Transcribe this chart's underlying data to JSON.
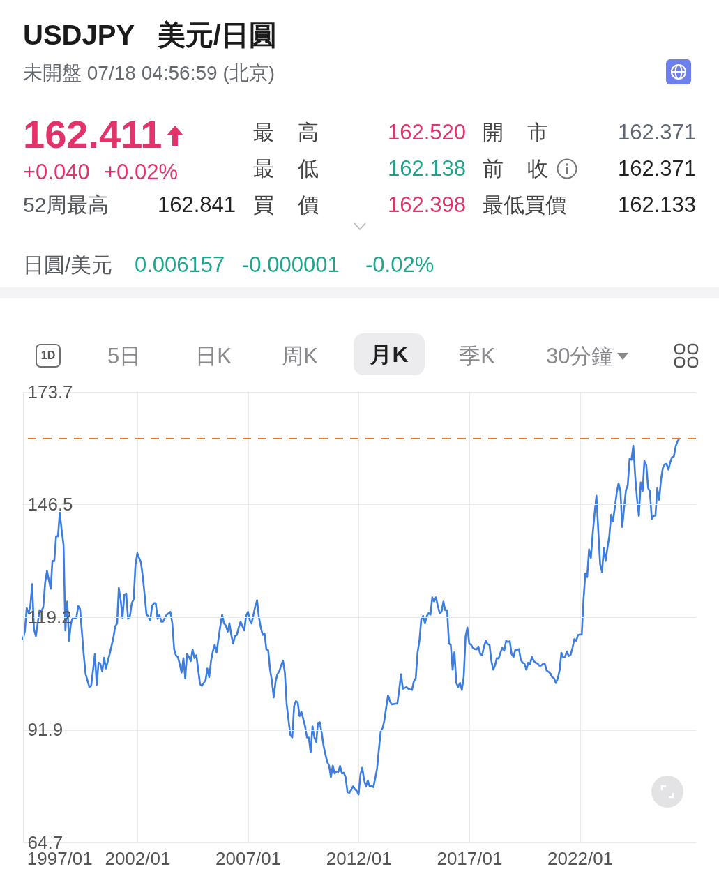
{
  "chart_data": [
    {
      "type": "other",
      "title": "USDJPY   美元/日圓",
      "subtitle": "未開盤 07/18 04:56:59 (北京)",
      "annotations": [
        "162.411",
        "+0.040",
        "+0.02%",
        "52周最高",
        "162.841",
        "最 高",
        "162.520",
        "開 市",
        "162.371",
        "最 低",
        "162.138",
        "前 收",
        "162.371",
        "買 價",
        "162.398",
        "最低買價",
        "162.133",
        "日圓/美元",
        "0.006157",
        "-0.000001",
        "-0.02%"
      ]
    },
    {
      "type": "other",
      "annotations": [
        "1D",
        "5日",
        "日K",
        "周K",
        "月K",
        "季K",
        "30分鐘"
      ]
    },
    {
      "type": "line",
      "color": "#3b7de0",
      "grid": true,
      "xlim": [
        "1996-11",
        "2027-04"
      ],
      "xticks": [
        {
          "value": "1997-01",
          "label": "1997/01"
        },
        {
          "value": "2002-01",
          "label": "2002/01"
        },
        {
          "value": "2007-01",
          "label": "2007/01"
        },
        {
          "value": "2012-01",
          "label": "2012/01"
        },
        {
          "value": "2017-01",
          "label": "2017/01"
        },
        {
          "value": "2022-01",
          "label": "2022/01"
        }
      ],
      "ylim": [
        64.7,
        173.7
      ],
      "yticks": [
        64.7,
        91.9,
        119.2,
        146.5,
        173.7
      ],
      "ref_lines": [
        {
          "axis": "y",
          "value": 162.4,
          "color": "#e8782c",
          "line_style": "dashed"
        }
      ],
      "x": [
        "1996-11",
        "1996-12",
        "1997-01",
        "1997-02",
        "1997-03",
        "1997-04",
        "1997-05",
        "1997-06",
        "1997-08",
        "1997-09",
        "1997-10",
        "1997-11",
        "1997-12",
        "1998-02",
        "1998-03",
        "1998-04",
        "1998-05",
        "1998-06",
        "1998-07",
        "1998-08",
        "1998-09",
        "1998-10",
        "1998-11",
        "1998-12",
        "1999-01",
        "1999-02",
        "1999-04",
        "1999-05",
        "1999-06",
        "1999-07",
        "1999-08",
        "1999-09",
        "1999-11",
        "1999-12",
        "2000-02",
        "2000-03",
        "2000-04",
        "2000-05",
        "2000-06",
        "2000-07",
        "2000-08",
        "2000-09",
        "2000-10",
        "2000-12",
        "2001-01",
        "2001-02",
        "2001-03",
        "2001-04",
        "2001-05",
        "2001-06",
        "2001-07",
        "2001-08",
        "2001-09",
        "2001-10",
        "2001-11",
        "2001-12",
        "2002-01",
        "2002-02",
        "2002-03",
        "2002-04",
        "2002-05",
        "2002-06",
        "2002-07",
        "2002-08",
        "2002-09",
        "2002-10",
        "2002-11",
        "2002-12",
        "2003-01",
        "2003-02",
        "2003-03",
        "2003-04",
        "2003-05",
        "2003-07",
        "2003-08",
        "2003-09",
        "2003-10",
        "2003-11",
        "2003-12",
        "2004-01",
        "2004-02",
        "2004-03",
        "2004-04",
        "2004-05",
        "2004-06",
        "2004-07",
        "2004-08",
        "2004-09",
        "2004-11",
        "2004-12",
        "2005-02",
        "2005-03",
        "2005-04",
        "2005-05",
        "2005-06",
        "2005-07",
        "2005-08",
        "2005-09",
        "2005-10",
        "2005-11",
        "2005-12",
        "2006-01",
        "2006-02",
        "2006-03",
        "2006-04",
        "2006-05",
        "2006-06",
        "2006-07",
        "2006-08",
        "2006-09",
        "2006-10",
        "2006-11",
        "2006-12",
        "2007-01",
        "2007-02",
        "2007-03",
        "2007-04",
        "2007-05",
        "2007-06",
        "2007-07",
        "2007-08",
        "2007-09",
        "2007-10",
        "2007-11",
        "2007-12",
        "2008-01",
        "2008-02",
        "2008-03",
        "2008-04",
        "2008-05",
        "2008-06",
        "2008-07",
        "2008-08",
        "2008-09",
        "2008-10",
        "2008-11",
        "2008-12",
        "2009-01",
        "2009-02",
        "2009-03",
        "2009-04",
        "2009-05",
        "2009-06",
        "2009-07",
        "2009-08",
        "2009-09",
        "2009-10",
        "2009-11",
        "2009-12",
        "2010-01",
        "2010-02",
        "2010-03",
        "2010-04",
        "2010-05",
        "2010-06",
        "2010-07",
        "2010-08",
        "2010-09",
        "2010-10",
        "2010-11",
        "2010-12",
        "2011-01",
        "2011-02",
        "2011-03",
        "2011-04",
        "2011-05",
        "2011-06",
        "2011-07",
        "2011-08",
        "2011-09",
        "2011-10",
        "2011-11",
        "2011-12",
        "2012-01",
        "2012-02",
        "2012-03",
        "2012-04",
        "2012-05",
        "2012-06",
        "2012-07",
        "2012-08",
        "2012-09",
        "2012-10",
        "2012-11",
        "2012-12",
        "2013-01",
        "2013-02",
        "2013-03",
        "2013-04",
        "2013-05",
        "2013-06",
        "2013-07",
        "2013-08",
        "2013-09",
        "2013-10",
        "2013-11",
        "2013-12",
        "2014-01",
        "2014-02",
        "2014-03",
        "2014-04",
        "2014-05",
        "2014-06",
        "2014-07",
        "2014-08",
        "2014-09",
        "2014-10",
        "2014-11",
        "2014-12",
        "2015-01",
        "2015-02",
        "2015-03",
        "2015-04",
        "2015-05",
        "2015-06",
        "2015-07",
        "2015-08",
        "2015-09",
        "2015-10",
        "2015-11",
        "2015-12",
        "2016-01",
        "2016-02",
        "2016-03",
        "2016-04",
        "2016-05",
        "2016-06",
        "2016-07",
        "2016-08",
        "2016-09",
        "2016-10",
        "2016-11",
        "2016-12",
        "2017-01",
        "2017-02",
        "2017-03",
        "2017-04",
        "2017-05",
        "2017-06",
        "2017-07",
        "2017-08",
        "2017-09",
        "2017-10",
        "2017-11",
        "2017-12",
        "2018-01",
        "2018-02",
        "2018-03",
        "2018-04",
        "2018-05",
        "2018-06",
        "2018-07",
        "2018-08",
        "2018-09",
        "2018-10",
        "2018-11",
        "2018-12",
        "2019-01",
        "2019-02",
        "2019-03",
        "2019-04",
        "2019-05",
        "2019-06",
        "2019-07",
        "2019-08",
        "2019-09",
        "2019-10",
        "2019-11",
        "2019-12",
        "2020-01",
        "2020-02",
        "2020-03",
        "2020-04",
        "2020-05",
        "2020-06",
        "2020-07",
        "2020-08",
        "2020-09",
        "2020-10",
        "2020-11",
        "2020-12",
        "2021-01",
        "2021-02",
        "2021-03",
        "2021-04",
        "2021-05",
        "2021-06",
        "2021-07",
        "2021-08",
        "2021-09",
        "2021-10",
        "2021-11",
        "2021-12",
        "2022-01",
        "2022-02",
        "2022-03",
        "2022-04",
        "2022-05",
        "2022-06",
        "2022-07",
        "2022-08",
        "2022-09",
        "2022-10",
        "2022-11",
        "2022-12",
        "2023-01",
        "2023-02",
        "2023-03",
        "2023-04",
        "2023-05",
        "2023-06",
        "2023-07",
        "2023-08",
        "2023-09",
        "2023-10",
        "2023-11",
        "2023-12",
        "2024-01",
        "2024-02",
        "2024-03",
        "2024-04",
        "2024-05",
        "2024-06",
        "2024-07",
        "2024-08",
        "2024-09",
        "2024-10",
        "2024-11",
        "2024-12",
        "2025-01",
        "2025-02",
        "2025-03",
        "2025-04",
        "2025-05",
        "2025-06",
        "2025-07",
        "2025-08",
        "2025-09",
        "2025-10",
        "2025-11",
        "2025-12",
        "2026-01",
        "2026-02",
        "2026-03",
        "2026-04",
        "2026-05",
        "2026-06",
        "2026-07"
      ],
      "values": [
        113.9,
        115.8,
        121.4,
        120.2,
        121.9,
        127.2,
        116.3,
        114.6,
        120.9,
        120.7,
        121.6,
        127.5,
        130.4,
        126.1,
        132.8,
        132.8,
        138.8,
        138.8,
        144.5,
        140.2,
        136.7,
        116.0,
        123.0,
        113.5,
        117.7,
        119.1,
        119.1,
        121.9,
        121.2,
        115.6,
        110.0,
        105.4,
        102.3,
        102.6,
        110.3,
        102.8,
        108.2,
        107.9,
        106.1,
        109.4,
        106.8,
        108.6,
        110.3,
        114.2,
        117.0,
        117.7,
        126.3,
        123.3,
        119.1,
        124.7,
        124.9,
        118.8,
        119.5,
        122.6,
        123.5,
        131.8,
        134.7,
        133.5,
        132.5,
        129.0,
        124.7,
        119.8,
        119.5,
        118.4,
        121.9,
        122.6,
        122.6,
        118.8,
        119.8,
        118.1,
        118.1,
        119.1,
        119.8,
        120.5,
        117.7,
        111.4,
        109.9,
        109.6,
        107.9,
        105.8,
        109.3,
        104.4,
        110.3,
        109.6,
        108.6,
        111.4,
        109.3,
        110.0,
        103.0,
        102.6,
        104.0,
        106.8,
        104.7,
        108.6,
        111.0,
        112.5,
        110.7,
        113.9,
        117.0,
        119.8,
        117.7,
        117.2,
        115.7,
        117.7,
        114.9,
        112.8,
        114.7,
        114.9,
        116.7,
        118.1,
        117.0,
        116.0,
        119.5,
        120.5,
        118.4,
        117.7,
        119.8,
        121.8,
        123.3,
        119.1,
        116.7,
        114.9,
        115.3,
        111.4,
        111.2,
        106.5,
        103.7,
        99.8,
        103.7,
        105.4,
        106.1,
        107.5,
        108.7,
        105.8,
        98.1,
        94.2,
        90.7,
        90.1,
        97.7,
        98.9,
        98.6,
        95.3,
        96.3,
        94.6,
        92.8,
        90.1,
        90.1,
        86.5,
        92.8,
        90.1,
        89.0,
        93.6,
        93.8,
        91.3,
        88.2,
        86.1,
        84.2,
        83.3,
        80.5,
        83.3,
        81.4,
        81.9,
        81.8,
        83.2,
        81.4,
        81.6,
        80.5,
        76.9,
        76.7,
        77.4,
        78.3,
        77.6,
        77.2,
        76.3,
        81.2,
        82.8,
        79.8,
        78.3,
        79.7,
        78.3,
        78.4,
        78.1,
        80.2,
        82.6,
        87.2,
        91.7,
        92.4,
        94.2,
        97.4,
        100.3,
        98.9,
        98.1,
        98.2,
        98.3,
        98.3,
        101.6,
        105.4,
        101.9,
        102.1,
        102.3,
        101.9,
        101.7,
        101.6,
        103.7,
        104.4,
        110.7,
        113.5,
        118.8,
        119.5,
        117.7,
        119.5,
        120.2,
        119.8,
        124.0,
        123.0,
        124.0,
        121.9,
        120.2,
        120.5,
        123.0,
        120.9,
        120.9,
        112.8,
        112.5,
        106.5,
        110.7,
        103.3,
        102.3,
        103.3,
        101.6,
        104.7,
        114.6,
        116.7,
        112.8,
        112.5,
        111.8,
        111.5,
        111.4,
        112.1,
        110.3,
        110.0,
        112.1,
        113.5,
        112.7,
        112.5,
        108.6,
        106.5,
        107.5,
        109.3,
        109.2,
        110.7,
        111.8,
        111.1,
        113.5,
        113.2,
        113.4,
        110.3,
        109.6,
        111.4,
        111.3,
        111.5,
        108.9,
        108.2,
        108.0,
        106.5,
        108.2,
        107.9,
        109.6,
        108.6,
        108.2,
        108.0,
        107.5,
        107.5,
        107.9,
        107.9,
        106.3,
        106.0,
        105.6,
        104.7,
        104.4,
        103.3,
        104.4,
        106.5,
        110.6,
        109.4,
        109.6,
        110.9,
        109.8,
        110.1,
        111.8,
        113.9,
        113.5,
        114.9,
        115.0,
        115.0,
        123.3,
        129.8,
        128.9,
        135.6,
        133.5,
        139.5,
        144.4,
        148.6,
        140.0,
        132.0,
        130.2,
        136.0,
        132.8,
        136.0,
        138.8,
        144.0,
        142.4,
        145.8,
        149.3,
        151.6,
        149.7,
        141.0,
        145.8,
        150.0,
        151.1,
        157.6,
        157.3,
        160.7,
        153.5,
        147.9,
        143.7,
        151.8,
        149.7,
        157.0,
        156.0,
        150.4,
        149.7,
        143.0,
        143.7,
        143.8,
        150.4,
        147.6,
        152.5,
        155.3,
        156.2,
        156.3,
        154.9,
        156.7,
        157.9,
        158.1,
        160.5,
        161.8,
        162.4
      ]
    }
  ]
}
